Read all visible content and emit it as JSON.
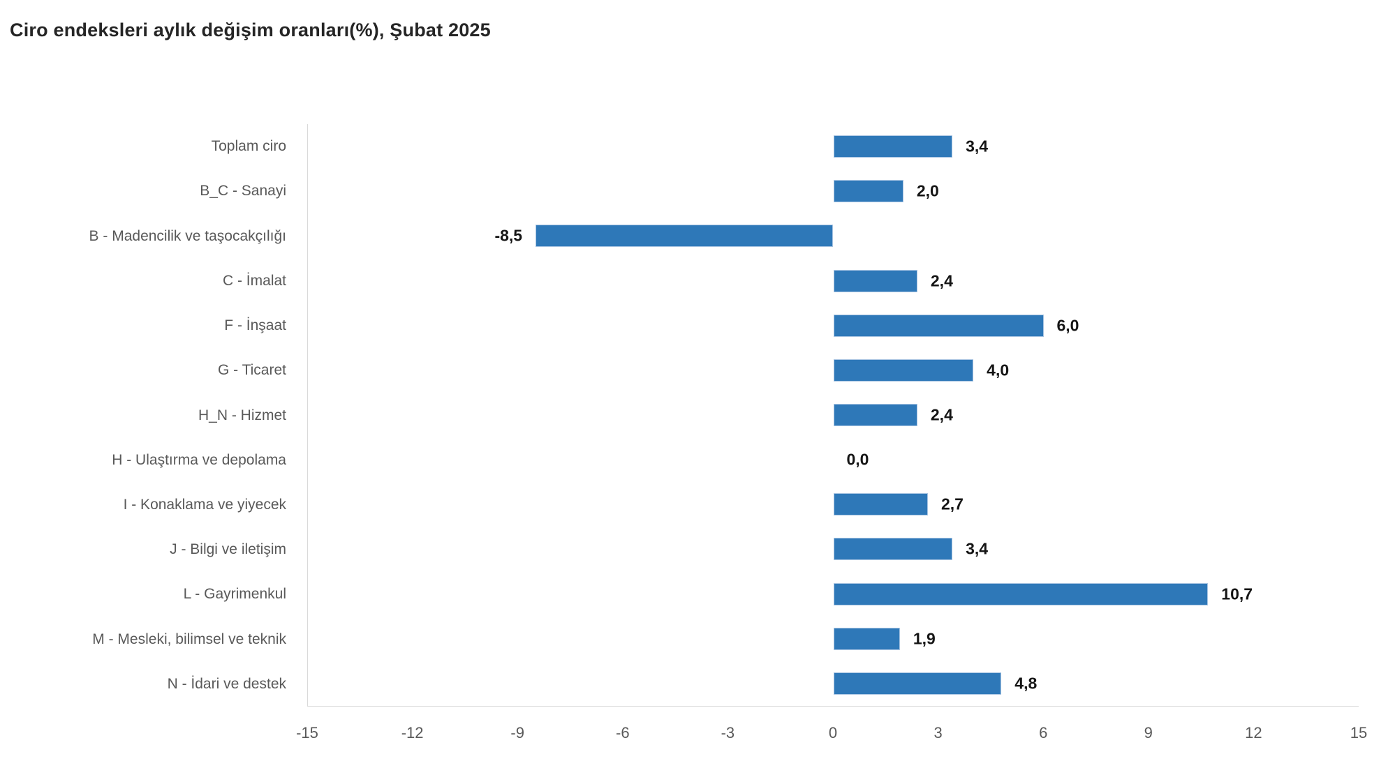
{
  "title": "Ciro endeksleri aylık değişim oranları(%), Şubat 2025",
  "colors": {
    "bar_fill": "#2e78b8",
    "bar_border": "#a8c4e2",
    "axis_line": "#d9d9d9",
    "title_text": "#252525",
    "category_text": "#595959",
    "tick_text": "#595959",
    "value_text": "#151515"
  },
  "chart_data": {
    "type": "bar",
    "orientation": "horizontal",
    "title": "Ciro endeksleri aylık değişim oranları(%), Şubat 2025",
    "categories": [
      "Toplam ciro",
      "B_C - Sanayi",
      "B - Madencilik ve taşocakçılığı",
      "C - İmalat",
      "F - İnşaat",
      "G - Ticaret",
      "H_N - Hizmet",
      "H - Ulaştırma ve depolama",
      "I - Konaklama ve yiyecek",
      "J - Bilgi ve iletişim",
      "L - Gayrimenkul",
      "M - Mesleki, bilimsel ve teknik",
      "N - İdari ve destek"
    ],
    "values": [
      3.4,
      2.0,
      -8.5,
      2.4,
      6.0,
      4.0,
      2.4,
      0.0,
      2.7,
      3.4,
      10.7,
      1.9,
      4.8
    ],
    "value_labels": [
      "3,4",
      "2,0",
      "-8,5",
      "2,4",
      "6,0",
      "4,0",
      "2,4",
      "0,0",
      "2,7",
      "3,4",
      "10,7",
      "1,9",
      "4,8"
    ],
    "xlabel": "",
    "ylabel": "",
    "xlim": [
      -15,
      15
    ],
    "x_ticks": [
      -15,
      -12,
      -9,
      -6,
      -3,
      0,
      3,
      6,
      9,
      12,
      15
    ],
    "x_tick_labels": [
      "-15",
      "-12",
      "-9",
      "-6",
      "-3",
      "0",
      "3",
      "6",
      "9",
      "12",
      "15"
    ],
    "grid": false,
    "legend": false
  }
}
